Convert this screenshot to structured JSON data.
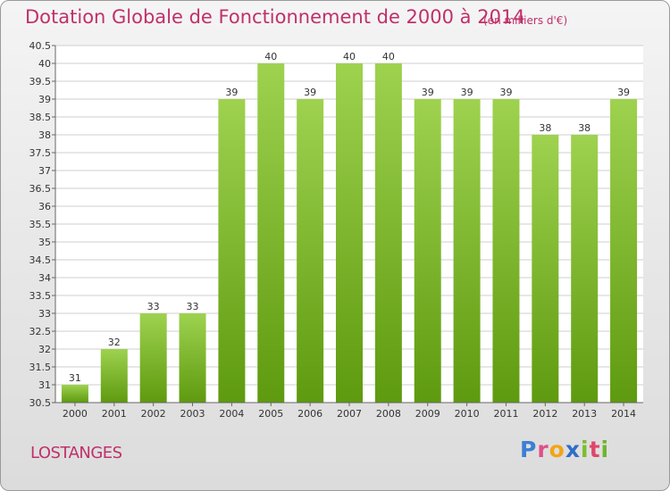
{
  "title": "Dotation Globale de Fonctionnement de 2000 à 2014",
  "subtitle": "(en milliers d'€)",
  "place": "LOSTANGES",
  "logo": {
    "letters": [
      "P",
      "r",
      "o",
      "x",
      "i",
      "t",
      "i"
    ],
    "colors": [
      "#3c7fd6",
      "#e04f8a",
      "#f2a516",
      "#2e6ec8",
      "#7bbd2f",
      "#e0466a",
      "#6fb42e"
    ]
  },
  "chart_data": {
    "type": "bar",
    "categories": [
      "2000",
      "2001",
      "2002",
      "2003",
      "2004",
      "2005",
      "2006",
      "2007",
      "2008",
      "2009",
      "2010",
      "2011",
      "2012",
      "2013",
      "2014"
    ],
    "values": [
      31,
      32,
      33,
      33,
      39,
      40,
      39,
      40,
      40,
      39,
      39,
      39,
      38,
      38,
      39
    ],
    "title": "Dotation Globale de Fonctionnement de 2000 à 2014",
    "subtitle": "(en milliers d'€)",
    "xlabel": "",
    "ylabel": "",
    "ylim": [
      30.5,
      40.5
    ],
    "yticks": [
      "30.5",
      "31",
      "31.5",
      "32",
      "32.5",
      "33",
      "33.5",
      "34",
      "34.5",
      "35",
      "35.5",
      "36",
      "36.5",
      "37",
      "37.5",
      "38",
      "38.5",
      "39",
      "39.5",
      "40",
      "40.5"
    ],
    "grid": true,
    "colors": {
      "bar_top": "#9ed24f",
      "bar_bottom": "#5e9a0f",
      "grid": "#cfcfcf",
      "plot_bg": "#ffffff"
    }
  }
}
